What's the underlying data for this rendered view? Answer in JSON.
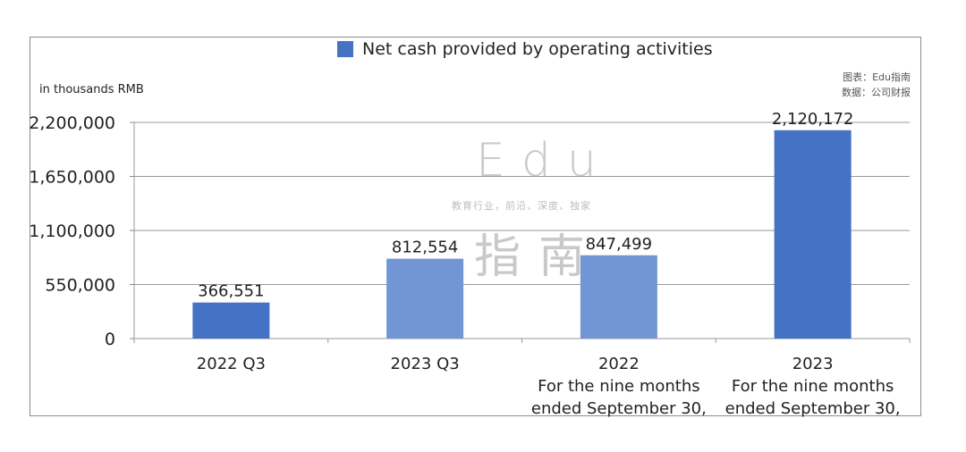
{
  "chart_data": {
    "type": "bar",
    "title": "",
    "legend": {
      "label": "Net cash provided by operating activities",
      "color": "#4472c4",
      "position": "top-center"
    },
    "ylabel": "in thousands RMB",
    "xlabel": "",
    "ylim": [
      0,
      2200000
    ],
    "yticks": [
      "0",
      "550,000",
      "1,100,000",
      "1,650,000",
      "2,200,000"
    ],
    "ytick_values": [
      0,
      550000,
      1100000,
      1650000,
      2200000
    ],
    "grid": true,
    "categories": [
      {
        "lines": [
          "2022 Q3"
        ]
      },
      {
        "lines": [
          "2023 Q3"
        ]
      },
      {
        "lines": [
          "2022",
          "For the nine months",
          "ended September 30,"
        ]
      },
      {
        "lines": [
          "2023",
          "For the nine months",
          "ended September 30,"
        ]
      }
    ],
    "values": [
      366551,
      812554,
      847499,
      2120172
    ],
    "value_labels": [
      "366,551",
      "812,554",
      "847,499",
      "2,120,172"
    ],
    "bar_colors": [
      "#4472c4",
      "#7196d3",
      "#7196d3",
      "#4472c4"
    ]
  },
  "source": {
    "line1": "图表：Edu指南",
    "line2": "数据：公司财报"
  },
  "watermark": {
    "brand": "Edu",
    "slogan": "教育行业，前沿、深度、独家",
    "chinese": "指南"
  }
}
